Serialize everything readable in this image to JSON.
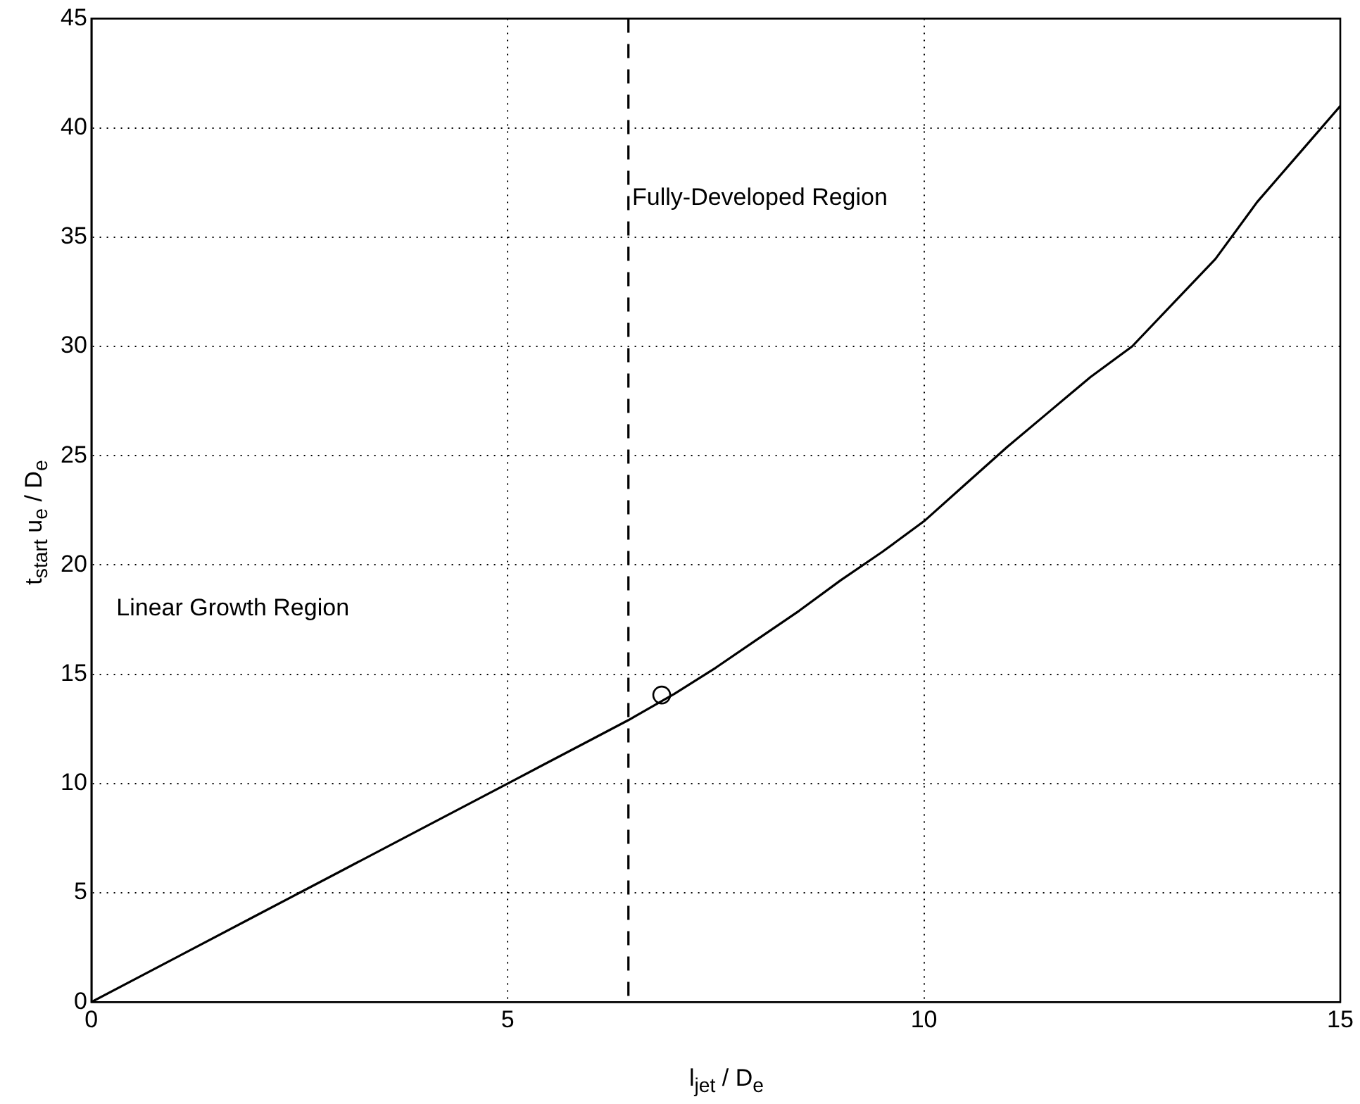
{
  "chart_data": {
    "type": "line",
    "xlabel": "l$_{jet}$ / D$_{e}$",
    "ylabel": "t$_{start}$ u$_{e}$ / D$_{e}$",
    "xlim": [
      0,
      15
    ],
    "ylim": [
      0,
      45
    ],
    "xticks": [
      0,
      5,
      10,
      15
    ],
    "yticks": [
      0,
      5,
      10,
      15,
      20,
      25,
      30,
      35,
      40,
      45
    ],
    "grid": true,
    "legend": false,
    "series": [
      {
        "color": "#000000",
        "marker": "none",
        "x": [
          0,
          1,
          2,
          2.5,
          3,
          4,
          5,
          6,
          6.45,
          7,
          7.5,
          8,
          8.5,
          9,
          9.5,
          10,
          10.5,
          11,
          11.5,
          12,
          12.5,
          13,
          13.5,
          14,
          14.5,
          15
        ],
        "values": [
          0,
          2,
          4,
          5,
          6,
          8,
          10,
          12,
          12.9,
          14.1,
          15.3,
          16.6,
          17.9,
          19.3,
          20.6,
          22,
          23.7,
          25.4,
          27,
          28.6,
          30,
          32,
          34,
          36.6,
          38.8,
          41
        ]
      },
      {
        "type": "scatter",
        "color": "#000000",
        "marker": "circle",
        "x": [
          6.85
        ],
        "values": [
          14.05
        ]
      }
    ],
    "ref_lines": [
      {
        "axis": "x",
        "value": 6.45,
        "color": "#000000",
        "line_style": "dashed"
      }
    ],
    "annotations": [
      "Fully-Developed Region",
      "Linear Growth Region"
    ]
  }
}
